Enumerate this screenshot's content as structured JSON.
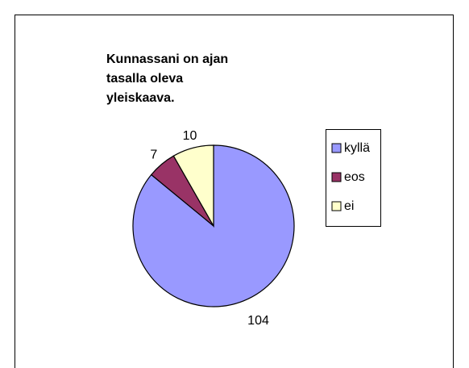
{
  "chart_data": {
    "type": "pie",
    "title": "Kunnassani on ajan tasalla oleva yleiskaava.",
    "categories": [
      "kyllä",
      "eos",
      "ei"
    ],
    "values": [
      104,
      7,
      10
    ],
    "colors": [
      "#9999ff",
      "#993366",
      "#ffffcc"
    ],
    "legend": "right"
  }
}
